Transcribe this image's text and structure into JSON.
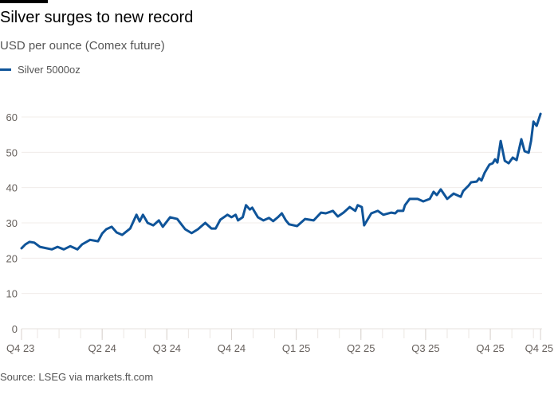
{
  "header": {
    "title": "Silver surges to new record",
    "subtitle": "USD per ounce (Comex future)"
  },
  "source": "Source: LSEG via markets.ft.com",
  "colors": {
    "line": "#0f5499",
    "grid": "#f0ecea",
    "axis_text": "#66605c"
  },
  "chart_data": {
    "type": "line",
    "title": "Silver surges to new record",
    "ylabel": "USD per ounce (Comex future)",
    "xlabel": "",
    "x_unit": "months since start of Oct 2023",
    "xlim": [
      2.26,
      26.4
    ],
    "ylim": [
      0,
      60
    ],
    "grid": true,
    "legend_placement": "top-left",
    "yticks": [
      0,
      10,
      20,
      30,
      40,
      50,
      60
    ],
    "ytick_labels": [
      "0",
      "10",
      "20",
      "30",
      "40",
      "50",
      "60"
    ],
    "xticks": [
      {
        "x": 2.26,
        "label": "Q4 23"
      },
      {
        "x": 6,
        "label": "Q2 24"
      },
      {
        "x": 9,
        "label": "Q3 24"
      },
      {
        "x": 12,
        "label": "Q4 24"
      },
      {
        "x": 15,
        "label": "Q1 25"
      },
      {
        "x": 18,
        "label": "Q2 25"
      },
      {
        "x": 21,
        "label": "Q3 25"
      },
      {
        "x": 24,
        "label": "Q4 25"
      },
      {
        "x": 26.33,
        "label": "Q4 25"
      }
    ],
    "series": [
      {
        "name": "Silver 5000oz",
        "x": [
          2.26,
          2.44,
          2.63,
          2.85,
          3.11,
          3.67,
          3.93,
          4.22,
          4.52,
          4.85,
          5.07,
          5.44,
          5.81,
          6.0,
          6.19,
          6.44,
          6.67,
          6.93,
          7.3,
          7.59,
          7.74,
          7.89,
          8.11,
          8.37,
          8.63,
          8.81,
          9.15,
          9.48,
          9.85,
          10.15,
          10.44,
          10.78,
          11.07,
          11.26,
          11.48,
          11.81,
          12.0,
          12.19,
          12.3,
          12.52,
          12.67,
          12.85,
          12.96,
          13.22,
          13.48,
          13.74,
          13.93,
          14.15,
          14.33,
          14.52,
          14.67,
          15.04,
          15.41,
          15.81,
          16.15,
          16.37,
          16.7,
          16.93,
          17.19,
          17.48,
          17.74,
          17.85,
          18.04,
          18.15,
          18.48,
          18.78,
          19.04,
          19.41,
          19.59,
          19.7,
          19.96,
          20.04,
          20.26,
          20.63,
          20.89,
          21.19,
          21.37,
          21.52,
          21.7,
          22.0,
          22.3,
          22.63,
          22.74,
          23.0,
          23.11,
          23.37,
          23.48,
          23.59,
          23.74,
          23.96,
          24.11,
          24.22,
          24.33,
          24.48,
          24.67,
          24.85,
          25.04,
          25.22,
          25.44,
          25.59,
          25.78,
          25.89,
          26.0,
          26.15,
          26.33
        ],
        "values": [
          22.8,
          23.9,
          24.6,
          24.4,
          23.2,
          22.5,
          23.2,
          22.5,
          23.4,
          22.5,
          23.9,
          25.2,
          24.8,
          27.0,
          28.2,
          28.9,
          27.3,
          26.6,
          28.4,
          32.3,
          30.4,
          32.3,
          30.0,
          29.3,
          30.7,
          28.9,
          31.6,
          31.1,
          28.2,
          27.1,
          28.2,
          30.0,
          28.4,
          28.4,
          30.9,
          32.3,
          31.6,
          32.3,
          30.7,
          31.6,
          35.0,
          33.8,
          34.3,
          31.6,
          30.7,
          31.4,
          30.5,
          31.6,
          32.7,
          30.7,
          29.6,
          29.1,
          31.1,
          30.7,
          32.9,
          32.7,
          33.4,
          31.8,
          32.9,
          34.5,
          33.4,
          35.0,
          34.5,
          29.3,
          32.7,
          33.4,
          32.3,
          32.9,
          32.7,
          33.4,
          33.4,
          35.0,
          36.8,
          36.8,
          36.1,
          36.8,
          38.8,
          37.9,
          39.5,
          36.8,
          38.3,
          37.4,
          39.0,
          40.6,
          41.5,
          41.7,
          42.6,
          42.0,
          44.2,
          46.5,
          46.9,
          48.0,
          47.1,
          53.2,
          47.6,
          46.9,
          48.5,
          47.8,
          53.7,
          50.3,
          49.9,
          53.2,
          58.7,
          57.5,
          60.9
        ]
      }
    ]
  }
}
